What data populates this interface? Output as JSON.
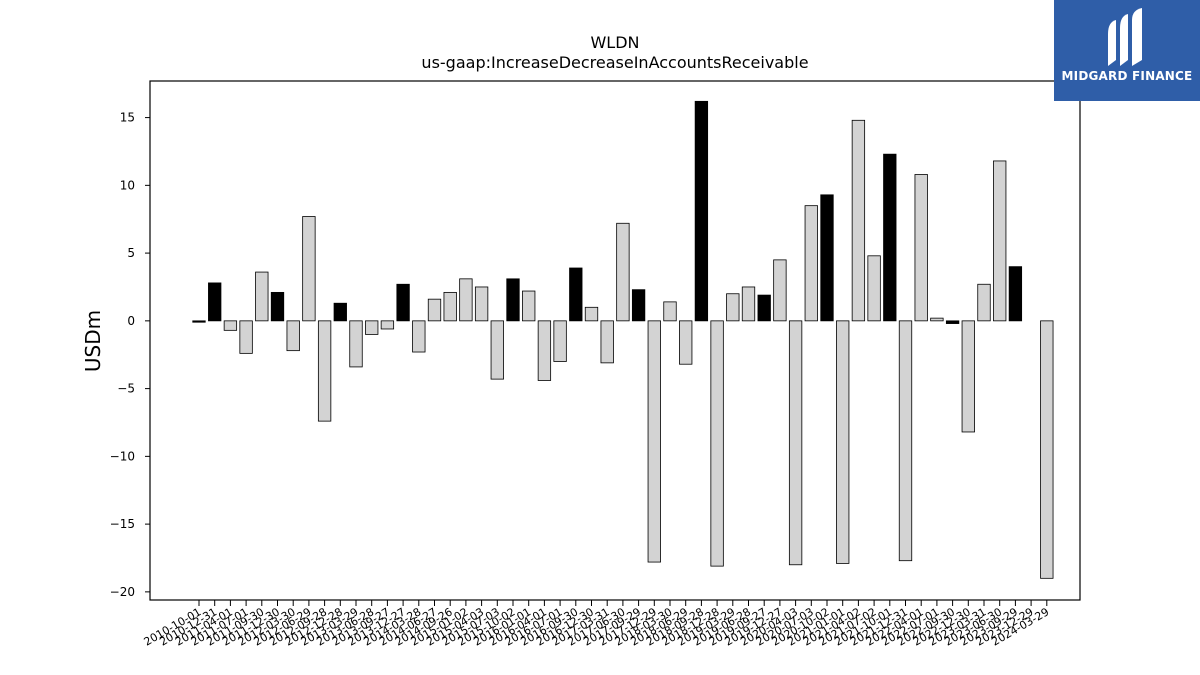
{
  "brand": {
    "name": "MIDGARD FINANCE"
  },
  "chart_data": {
    "type": "bar",
    "title": "WLDN",
    "subtitle": "us-gaap:IncreaseDecreaseInAccountsReceivable",
    "ylabel": "USDm",
    "xlabel": "",
    "ylim": [
      -20.6,
      17.7
    ],
    "yticks": [
      15,
      10,
      5,
      0,
      -5,
      -10,
      -15,
      -20
    ],
    "ytick_labels": [
      "15",
      "10",
      "5",
      "0",
      "−5",
      "−10",
      "−15",
      "−20"
    ],
    "categories": [
      "2010-10-01",
      "2010-12-31",
      "2011-04-01",
      "2011-07-01",
      "2011-09-30",
      "2011-12-30",
      "2012-03-30",
      "2012-06-29",
      "2012-09-28",
      "2012-12-28",
      "2013-03-29",
      "2013-06-28",
      "2013-09-27",
      "2013-12-27",
      "2014-03-28",
      "2014-06-27",
      "2014-09-26",
      "2015-01-02",
      "2015-04-03",
      "2015-07-03",
      "2015-10-02",
      "2016-01-01",
      "2016-04-01",
      "2016-07-01",
      "2016-09-30",
      "2016-12-30",
      "2017-03-31",
      "2017-06-30",
      "2017-09-29",
      "2017-12-29",
      "2018-03-30",
      "2018-06-29",
      "2018-09-28",
      "2018-12-28",
      "2019-03-29",
      "2019-06-28",
      "2019-09-27",
      "2019-12-27",
      "2020-04-03",
      "2020-07-03",
      "2020-10-02",
      "2021-01-01",
      "2021-04-02",
      "2021-07-02",
      "2021-10-01",
      "2021-12-31",
      "2022-04-01",
      "2022-07-01",
      "2022-09-30",
      "2022-12-30",
      "2023-03-31",
      "2023-06-30",
      "2023-09-29",
      "2023-12-29",
      "2024-03-29"
    ],
    "values": [
      -0.1,
      2.8,
      -0.7,
      -2.4,
      3.6,
      2.1,
      -2.2,
      7.7,
      -7.4,
      1.3,
      -3.4,
      -1.0,
      -0.6,
      2.7,
      -2.3,
      1.6,
      2.1,
      3.1,
      2.5,
      -4.3,
      3.1,
      2.2,
      -4.4,
      -3.0,
      3.9,
      1.0,
      -3.1,
      7.2,
      2.3,
      -17.8,
      1.4,
      -3.2,
      16.2,
      -18.1,
      2.0,
      2.5,
      1.9,
      4.5,
      -18.0,
      8.5,
      9.3,
      -17.9,
      14.8,
      4.8,
      12.3,
      -17.7,
      10.8,
      0.2,
      -0.2,
      -8.2,
      2.7,
      11.8,
      4.0,
      null,
      -19.0
    ],
    "highlight": [
      true,
      true,
      false,
      false,
      false,
      true,
      false,
      false,
      false,
      true,
      false,
      false,
      false,
      true,
      false,
      false,
      false,
      false,
      false,
      false,
      true,
      false,
      false,
      false,
      true,
      false,
      false,
      false,
      true,
      false,
      false,
      false,
      true,
      false,
      false,
      false,
      true,
      false,
      false,
      false,
      true,
      false,
      false,
      false,
      true,
      false,
      false,
      false,
      true,
      false,
      false,
      false,
      true,
      false,
      false
    ],
    "colors": {
      "highlight": "#000000",
      "normal": "#d3d3d3",
      "edge": "#000000"
    },
    "grid": false,
    "legend": "none"
  }
}
